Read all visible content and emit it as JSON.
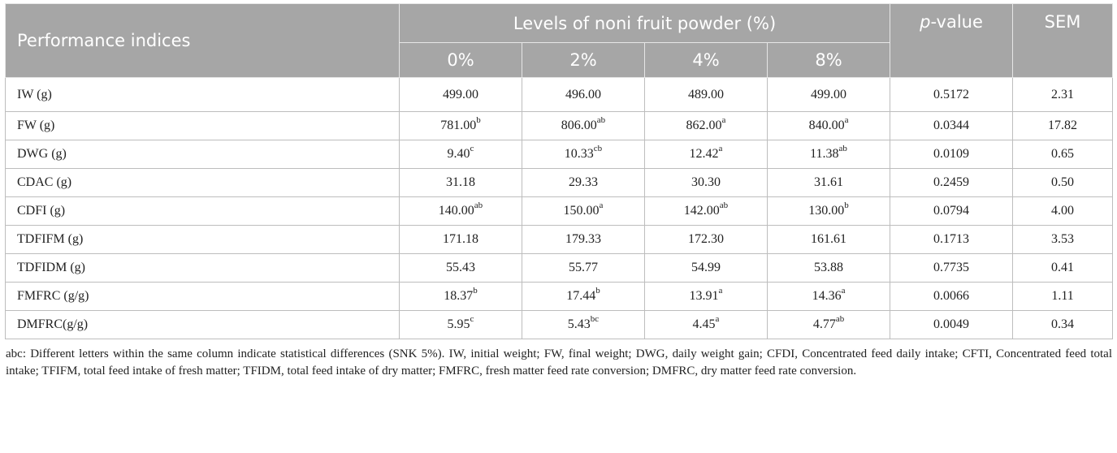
{
  "table": {
    "header": {
      "performance": "Performance indices",
      "levels": "Levels of noni fruit powder (%)",
      "pvalue_italic": "p",
      "pvalue_rest": "-value",
      "sem": "SEM",
      "levels_sub": [
        "0%",
        "2%",
        "4%",
        "8%"
      ]
    },
    "rows": [
      {
        "label": "IW (g)",
        "cells": [
          {
            "v": "499.00",
            "s": ""
          },
          {
            "v": "496.00",
            "s": ""
          },
          {
            "v": "489.00",
            "s": ""
          },
          {
            "v": "499.00",
            "s": ""
          }
        ],
        "p": "0.5172",
        "sem": "2.31"
      },
      {
        "label": "FW (g)",
        "cells": [
          {
            "v": "781.00",
            "s": "b"
          },
          {
            "v": "806.00",
            "s": "ab"
          },
          {
            "v": "862.00",
            "s": "a"
          },
          {
            "v": "840.00",
            "s": "a"
          }
        ],
        "p": "0.0344",
        "sem": "17.82"
      },
      {
        "label": "DWG (g)",
        "cells": [
          {
            "v": "9.40",
            "s": "c"
          },
          {
            "v": "10.33",
            "s": "cb"
          },
          {
            "v": "12.42",
            "s": "a"
          },
          {
            "v": "11.38",
            "s": "ab"
          }
        ],
        "p": "0.0109",
        "sem": "0.65"
      },
      {
        "label": "CDAC (g)",
        "cells": [
          {
            "v": "31.18",
            "s": ""
          },
          {
            "v": "29.33",
            "s": ""
          },
          {
            "v": "30.30",
            "s": ""
          },
          {
            "v": "31.61",
            "s": ""
          }
        ],
        "p": "0.2459",
        "sem": "0.50"
      },
      {
        "label": "CDFI (g)",
        "cells": [
          {
            "v": "140.00",
            "s": "ab"
          },
          {
            "v": "150.00",
            "s": "a"
          },
          {
            "v": "142.00",
            "s": "ab"
          },
          {
            "v": "130.00",
            "s": "b"
          }
        ],
        "p": "0.0794",
        "sem": "4.00"
      },
      {
        "label": "TDFIFM (g)",
        "cells": [
          {
            "v": "171.18",
            "s": ""
          },
          {
            "v": "179.33",
            "s": ""
          },
          {
            "v": "172.30",
            "s": ""
          },
          {
            "v": "161.61",
            "s": ""
          }
        ],
        "p": "0.1713",
        "sem": "3.53"
      },
      {
        "label": "TDFIDM (g)",
        "cells": [
          {
            "v": "55.43",
            "s": ""
          },
          {
            "v": "55.77",
            "s": ""
          },
          {
            "v": "54.99",
            "s": ""
          },
          {
            "v": "53.88",
            "s": ""
          }
        ],
        "p": "0.7735",
        "sem": "0.41"
      },
      {
        "label": "FMFRC (g/g)",
        "cells": [
          {
            "v": "18.37",
            "s": "b"
          },
          {
            "v": "17.44",
            "s": "b"
          },
          {
            "v": "13.91",
            "s": "a"
          },
          {
            "v": "14.36",
            "s": "a"
          }
        ],
        "p": "0.0066",
        "sem": "1.11"
      },
      {
        "label": "DMFRC(g/g)",
        "cells": [
          {
            "v": "5.95",
            "s": "c"
          },
          {
            "v": "5.43",
            "s": "bc"
          },
          {
            "v": "4.45",
            "s": "a"
          },
          {
            "v": "4.77",
            "s": "ab"
          }
        ],
        "p": "0.0049",
        "sem": "0.34"
      }
    ]
  },
  "footnote": "abc: Different letters within the same column indicate statistical differences (SNK 5%). IW, initial weight; FW, final weight; DWG, daily weight gain; CFDI, Concentrated feed daily intake; CFTI, Concentrated feed total intake; TFIFM, total feed intake of fresh matter; TFIDM, total feed intake of dry matter; FMFRC, fresh matter feed rate conversion; DMFRC, dry matter feed rate conversion."
}
